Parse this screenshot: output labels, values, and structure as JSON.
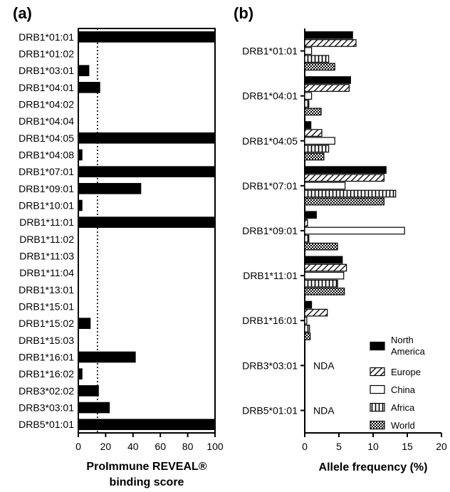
{
  "panel_a_label": "(a)",
  "panel_b_label": "(b)",
  "chart_data": [
    {
      "type": "bar",
      "orientation": "horizontal",
      "panel": "(a)",
      "categories": [
        "DRB1*01:01",
        "DRB1*01:02",
        "DRB1*03:01",
        "DRB1*04:01",
        "DRB1*04:02",
        "DRB1*04:04",
        "DRB1*04:05",
        "DRB1*04:08",
        "DRB1*07:01",
        "DRB1*09:01",
        "DRB1*10:01",
        "DRB1*11:01",
        "DRB1*11:02",
        "DRB1*11:03",
        "DRB1*11:04",
        "DRB1*13:01",
        "DRB1*15:01",
        "DRB1*15:02",
        "DRB1*15:03",
        "DRB1*16:01",
        "DRB1*16:02",
        "DRB3*02:02",
        "DRB3*03:01",
        "DRB5*01:01"
      ],
      "values": [
        100,
        0,
        8,
        16,
        0,
        0,
        100,
        3,
        100,
        46,
        3,
        100,
        0,
        0,
        0,
        0,
        0,
        9,
        0,
        42,
        3,
        15,
        23,
        100
      ],
      "threshold": 14,
      "xlim": [
        0,
        100
      ],
      "xticks": [
        "0",
        "20",
        "40",
        "60",
        "80",
        "100"
      ],
      "xlabel_line1": "ProImmune REVEAL®",
      "xlabel_line2": "binding score",
      "color": "#000000"
    },
    {
      "type": "bar",
      "orientation": "horizontal",
      "panel": "(b)",
      "categories": [
        "DRB1*01:01",
        "DRB1*04:01",
        "DRB1*04:05",
        "DRB1*07:01",
        "DRB1*09:01",
        "DRB1*11:01",
        "DRB1*16:01",
        "DRB3*03:01",
        "DRB5*01:01"
      ],
      "series": [
        {
          "name": "North America",
          "name_line1": "North",
          "name_line2": "America",
          "pattern": "solid",
          "values": [
            7.0,
            6.7,
            0.9,
            11.9,
            1.7,
            5.5,
            1.0,
            null,
            null
          ]
        },
        {
          "name": "Europe",
          "pattern": "diagonal",
          "values": [
            7.5,
            6.5,
            2.5,
            11.6,
            0.4,
            6.1,
            3.3,
            null,
            null
          ]
        },
        {
          "name": "China",
          "pattern": "open",
          "values": [
            1.0,
            1.0,
            4.4,
            5.9,
            14.6,
            5.7,
            0.3,
            null,
            null
          ]
        },
        {
          "name": "Africa",
          "pattern": "vertical",
          "values": [
            3.5,
            0.6,
            3.5,
            13.3,
            0.6,
            4.8,
            0.7,
            null,
            null
          ]
        },
        {
          "name": "World",
          "pattern": "checker",
          "values": [
            4.4,
            2.4,
            2.8,
            11.6,
            4.8,
            5.8,
            0.8,
            null,
            null
          ]
        }
      ],
      "annotations": [
        {
          "category": "DRB3*03:01",
          "text": "NDA"
        },
        {
          "category": "DRB5*01:01",
          "text": "NDA"
        }
      ],
      "xlim": [
        0,
        20
      ],
      "xticks": [
        "0",
        "5",
        "10",
        "15",
        "20"
      ],
      "xlabel": "Allele frequency (%)",
      "legend_position": "bottom-right"
    }
  ]
}
